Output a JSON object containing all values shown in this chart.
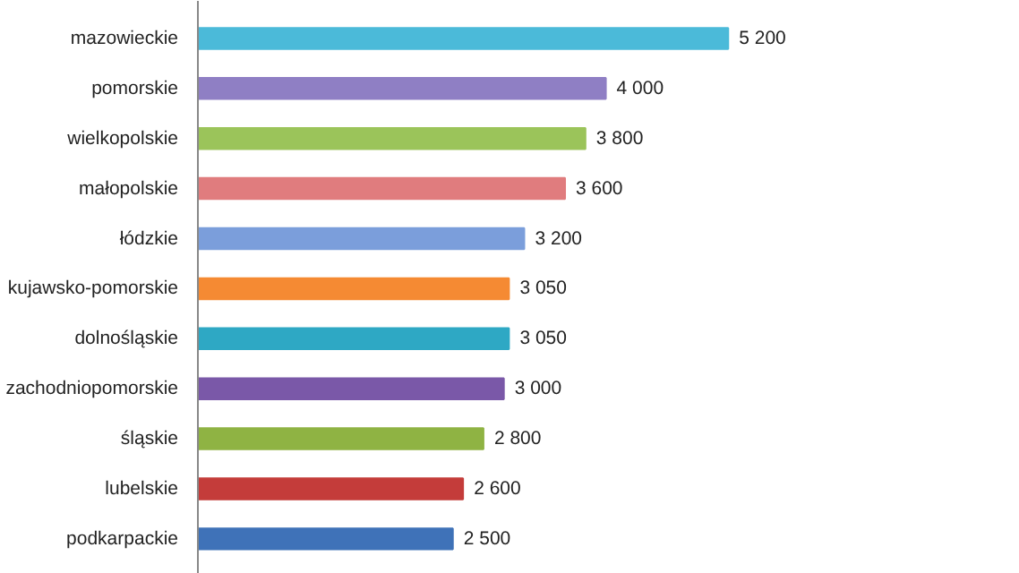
{
  "chart_data": {
    "type": "bar",
    "orientation": "horizontal",
    "categories": [
      "mazowieckie",
      "pomorskie",
      "wielkopolskie",
      "małopolskie",
      "łódzkie",
      "kujawsko-pomorskie",
      "dolnośląskie",
      "zachodniopomorskie",
      "śląskie",
      "lubelskie",
      "podkarpackie"
    ],
    "values": [
      5200,
      4000,
      3800,
      3600,
      3200,
      3050,
      3050,
      3000,
      2800,
      2600,
      2500
    ],
    "value_labels": [
      "5 200",
      "4 000",
      "3 800",
      "3 600",
      "3 200",
      "3 050",
      "3 050",
      "3 000",
      "2 800",
      "2 600",
      "2 500"
    ],
    "colors": [
      "#4bbad9",
      "#8f7fc4",
      "#9bc45a",
      "#e07c7e",
      "#7b9edb",
      "#f58a33",
      "#2ea8c4",
      "#7a58a8",
      "#8fb343",
      "#c43c3a",
      "#3f72b8"
    ],
    "grid": false,
    "tick_labels": "y"
  }
}
